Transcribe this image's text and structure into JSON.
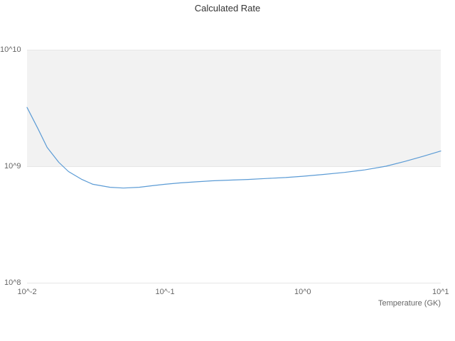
{
  "chart_data": {
    "type": "line",
    "title": "Calculated Rate",
    "xlabel": "Temperature (GK)",
    "ylabel": "",
    "x_scale": "log",
    "y_scale": "log",
    "xlim": [
      0.01,
      10
    ],
    "ylim": [
      100000000.0,
      10000000000.0
    ],
    "grid": "horizontal",
    "legend": "none",
    "x_ticks": {
      "values": [
        0.01,
        0.1,
        1,
        10
      ],
      "labels": [
        "10^-2",
        "10^-1",
        "10^0",
        "10^1"
      ]
    },
    "y_ticks": {
      "values": [
        100000000.0,
        1000000000.0,
        10000000000.0
      ],
      "labels": [
        "10^8",
        "10^9",
        "10^10"
      ]
    },
    "band": {
      "from": 1000000000.0,
      "to": 10000000000.0,
      "color": "#f2f2f2"
    },
    "series": [
      {
        "name": "Calculated Rate",
        "color": "#5B9BD5",
        "x": [
          0.01,
          0.012,
          0.014,
          0.017,
          0.02,
          0.025,
          0.03,
          0.04,
          0.05,
          0.065,
          0.08,
          0.1,
          0.13,
          0.17,
          0.22,
          0.3,
          0.4,
          0.55,
          0.75,
          1.0,
          1.4,
          2.0,
          2.8,
          4.0,
          5.5,
          7.5,
          10.0
        ],
        "y": [
          3200000000.0,
          2100000000.0,
          1450000000.0,
          1080000000.0,
          900000000.0,
          770000000.0,
          700000000.0,
          660000000.0,
          650000000.0,
          660000000.0,
          680000000.0,
          700000000.0,
          720000000.0,
          735000000.0,
          750000000.0,
          760000000.0,
          770000000.0,
          785000000.0,
          800000000.0,
          820000000.0,
          850000000.0,
          885000000.0,
          930000000.0,
          1000000000.0,
          1100000000.0,
          1220000000.0,
          1350000000.0
        ]
      }
    ],
    "colors": {
      "grid": "#e6e6e6",
      "background": "#ffffff",
      "band": "#f2f2f2",
      "line": "#5B9BD5",
      "tick_text": "#666666",
      "title_text": "#333333"
    }
  }
}
